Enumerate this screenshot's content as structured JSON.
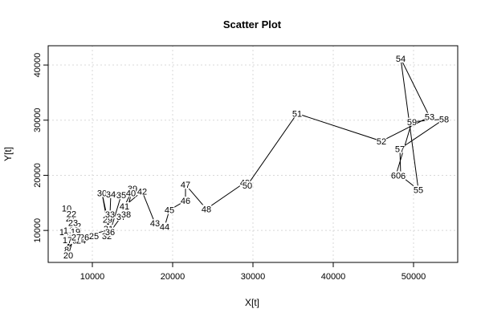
{
  "chart_data": {
    "type": "line",
    "title": "Scatter Plot",
    "xlabel": "X[t]",
    "ylabel": "Y[t]",
    "xlim": [
      4500,
      55500
    ],
    "ylim": [
      4200,
      43500
    ],
    "xticks": [
      10000,
      20000,
      30000,
      40000,
      50000
    ],
    "yticks": [
      10000,
      20000,
      30000,
      40000
    ],
    "grid": true,
    "series": [
      {
        "labels": [
          "1",
          "2",
          "3",
          "4",
          "5",
          "6",
          "7",
          "8",
          "9",
          "10",
          "11",
          "12",
          "13",
          "14",
          "15",
          "16",
          "17",
          "18",
          "19",
          "20",
          "21",
          "22",
          "23",
          "24",
          "25",
          "26",
          "27",
          "28",
          "29",
          "30",
          "31",
          "32",
          "33",
          "34",
          "35",
          "36",
          "37",
          "38",
          "39",
          "40",
          "41",
          "42",
          "43",
          "44",
          "45",
          "46",
          "47",
          "48",
          "49",
          "50",
          "51",
          "52",
          "53",
          "54",
          "55",
          "56",
          "57",
          "58",
          "59",
          "60"
        ],
        "points": [
          [
            6800,
            10200
          ],
          [
            6900,
            10100
          ],
          [
            7100,
            10300
          ],
          [
            7000,
            9800
          ],
          [
            7200,
            10100
          ],
          [
            7300,
            10000
          ],
          [
            7500,
            10300
          ],
          [
            6800,
            6500
          ],
          [
            7800,
            8200
          ],
          [
            6800,
            14000
          ],
          [
            7400,
            9900
          ],
          [
            8000,
            10800
          ],
          [
            7500,
            10600
          ],
          [
            6500,
            9700
          ],
          [
            7000,
            10000
          ],
          [
            7600,
            10200
          ],
          [
            6900,
            8300
          ],
          [
            7700,
            10100
          ],
          [
            7900,
            9800
          ],
          [
            7000,
            5500
          ],
          [
            7300,
            12200
          ],
          [
            7400,
            13000
          ],
          [
            7600,
            11400
          ],
          [
            8600,
            8200
          ],
          [
            10200,
            9000
          ],
          [
            9000,
            8800
          ],
          [
            8000,
            8800
          ],
          [
            12000,
            10000
          ],
          [
            11900,
            12000
          ],
          [
            11200,
            16800
          ],
          [
            12000,
            10300
          ],
          [
            11800,
            9000
          ],
          [
            12200,
            12900
          ],
          [
            12300,
            16600
          ],
          [
            13600,
            16400
          ],
          [
            12200,
            9700
          ],
          [
            13600,
            12500
          ],
          [
            14200,
            12900
          ],
          [
            15000,
            17600
          ],
          [
            14800,
            16800
          ],
          [
            14000,
            14400
          ],
          [
            16200,
            17100
          ],
          [
            17800,
            11300
          ],
          [
            19000,
            10700
          ],
          [
            19600,
            13700
          ],
          [
            21600,
            15400
          ],
          [
            21600,
            18300
          ],
          [
            24200,
            13900
          ],
          [
            29000,
            18700
          ],
          [
            29300,
            18200
          ],
          [
            35500,
            31200
          ],
          [
            46000,
            26200
          ],
          [
            52000,
            30600
          ],
          [
            48400,
            41200
          ],
          [
            50600,
            17400
          ],
          [
            48400,
            19900
          ],
          [
            48300,
            24800
          ],
          [
            53800,
            30200
          ],
          [
            49800,
            29700
          ],
          [
            47800,
            20000
          ]
        ]
      }
    ]
  }
}
